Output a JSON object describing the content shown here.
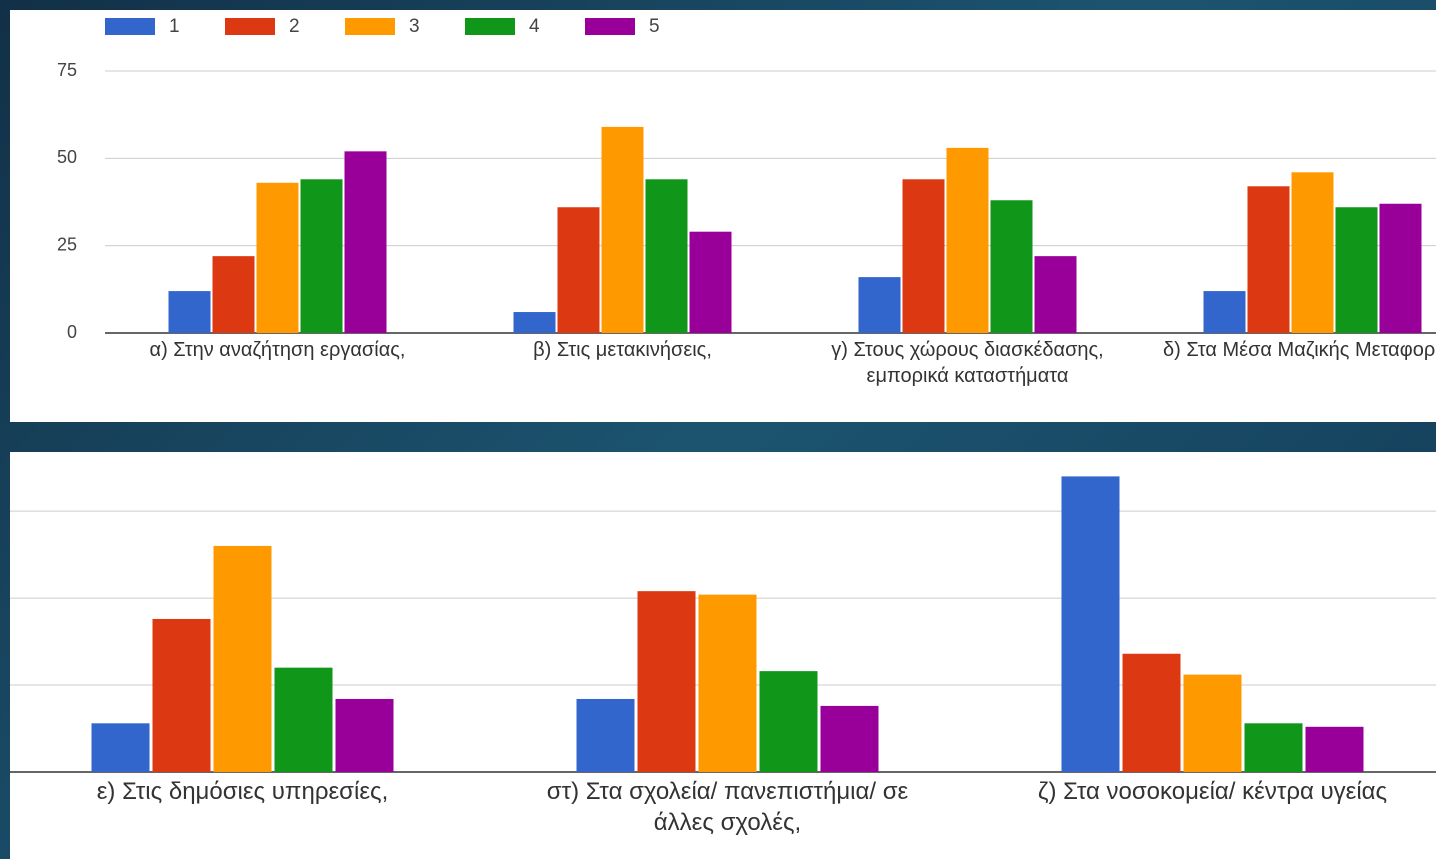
{
  "chart_data": [
    {
      "type": "bar",
      "legend": "top",
      "grid": true,
      "tick_labels": true,
      "categories": [
        "α) Στην αναζήτηση εργασίας,",
        "β) Στις μετακινήσεις,",
        "γ) Στους χώρους διασκέδασης, εμπορικά καταστήματα",
        "δ) Στα Μέσα Μαζικής Μεταφοράς,"
      ],
      "series": [
        {
          "name": "1",
          "color": "#3366cc",
          "values": [
            12,
            6,
            16,
            12
          ]
        },
        {
          "name": "2",
          "color": "#dc3912",
          "values": [
            22,
            36,
            44,
            42
          ]
        },
        {
          "name": "3",
          "color": "#ff9900",
          "values": [
            43,
            59,
            53,
            46
          ]
        },
        {
          "name": "4",
          "color": "#109618",
          "values": [
            44,
            44,
            38,
            36
          ]
        },
        {
          "name": "5",
          "color": "#990099",
          "values": [
            52,
            29,
            22,
            37
          ]
        }
      ],
      "ylim": [
        0,
        75
      ],
      "yticks": [
        0,
        25,
        50,
        75
      ]
    },
    {
      "type": "bar",
      "grid": true,
      "tick_labels": false,
      "categories": [
        "ε) Στις δημόσιες υπηρεσίες,",
        "στ) Στα σχολεία/ πανεπιστήμια/ σε άλλες σχολές,",
        "ζ) Στα νοσοκομεία/ κέντρα υγείας"
      ],
      "series": [
        {
          "color": "#3366cc",
          "values": [
            14,
            21,
            85
          ]
        },
        {
          "color": "#dc3912",
          "values": [
            44,
            52,
            34
          ]
        },
        {
          "color": "#ff9900",
          "values": [
            65,
            51,
            28
          ]
        },
        {
          "color": "#109618",
          "values": [
            30,
            29,
            14
          ]
        },
        {
          "color": "#990099",
          "values": [
            21,
            19,
            13
          ]
        }
      ],
      "ylim": [
        0,
        90
      ],
      "yticks": [
        0,
        25,
        50,
        75
      ]
    }
  ]
}
